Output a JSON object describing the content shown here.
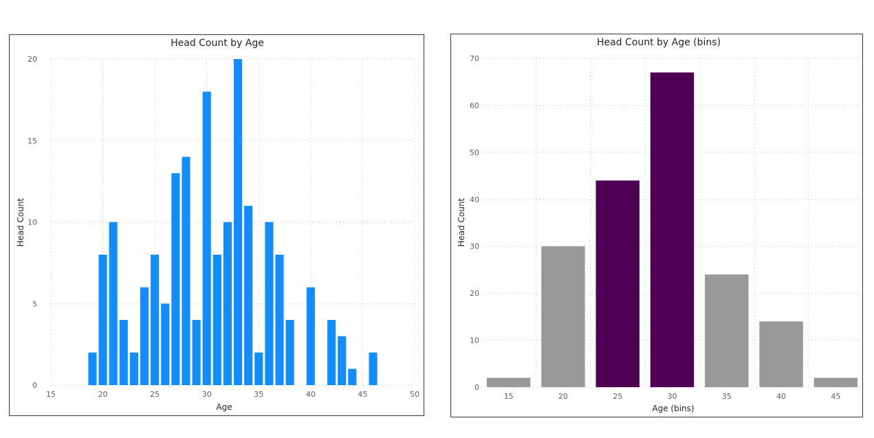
{
  "chart_data": [
    {
      "type": "bar",
      "title": "Head Count by Age",
      "xlabel": "Age",
      "ylabel": "Head Count",
      "xlim": [
        15,
        50
      ],
      "ylim": [
        0,
        20
      ],
      "xticks": [
        15,
        20,
        25,
        30,
        35,
        40,
        45,
        50
      ],
      "yticks": [
        0,
        5,
        10,
        15,
        20
      ],
      "grid": true,
      "bar_color": "#118DFF",
      "x": [
        19,
        20,
        21,
        22,
        23,
        24,
        25,
        26,
        27,
        28,
        29,
        30,
        31,
        32,
        33,
        34,
        35,
        36,
        37,
        38,
        40,
        42,
        43,
        44,
        46
      ],
      "values": [
        2,
        8,
        10,
        4,
        2,
        6,
        8,
        5,
        13,
        14,
        4,
        18,
        8,
        10,
        20,
        11,
        2,
        10,
        8,
        4,
        6,
        4,
        3,
        1,
        2
      ]
    },
    {
      "type": "bar",
      "title": "Head Count by Age (bins)",
      "xlabel": "Age (bins)",
      "ylabel": "Head Count",
      "ylim": [
        0,
        70
      ],
      "yticks": [
        0,
        10,
        20,
        30,
        40,
        50,
        60,
        70
      ],
      "grid": true,
      "categories": [
        "15",
        "20",
        "25",
        "30",
        "35",
        "40",
        "45"
      ],
      "values": [
        2,
        30,
        44,
        67,
        24,
        14,
        2
      ],
      "colors": [
        "#999999",
        "#999999",
        "#4E0054",
        "#4E0054",
        "#999999",
        "#999999",
        "#999999"
      ]
    }
  ]
}
